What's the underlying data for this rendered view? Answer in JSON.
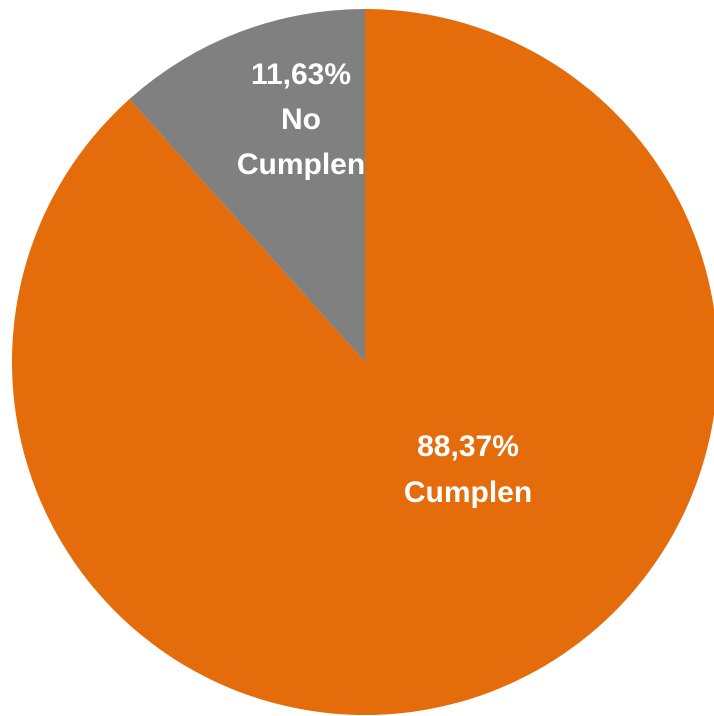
{
  "chart_data": {
    "type": "pie",
    "start_angle_deg": 0,
    "direction": "clockwise",
    "slices": [
      {
        "label": "Cumplen",
        "value": 88.37,
        "value_text": "88,37%",
        "color": "#E46C0A"
      },
      {
        "label": "No Cumplen",
        "value": 11.63,
        "value_text": "11,63%",
        "color": "#808080"
      }
    ],
    "legend": "none",
    "data_labels": "inside"
  }
}
